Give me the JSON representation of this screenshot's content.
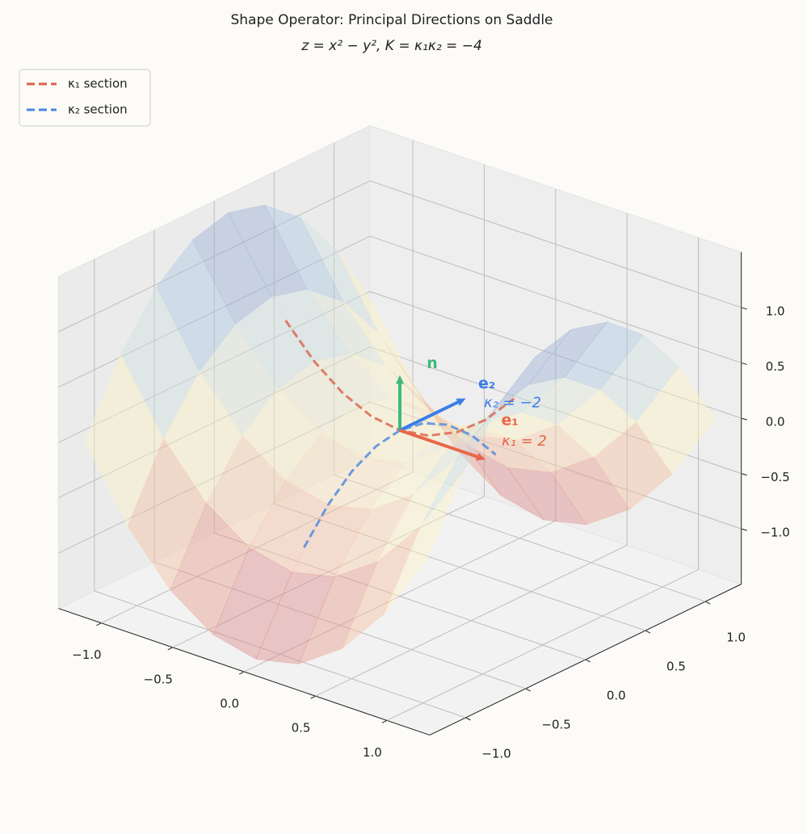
{
  "chart_data": {
    "type": "surface3d",
    "title": "Shape Operator: Principal Directions on Saddle",
    "subtitle": "z = x² − y², K = κ₁κ₂ = −4",
    "xlim": [
      -1.3,
      1.3
    ],
    "ylim": [
      -1.3,
      1.3
    ],
    "zlim": [
      -1.5,
      1.5
    ],
    "xticks": [
      {
        "value": -1,
        "label": "−1.0"
      },
      {
        "value": -0.5,
        "label": "−0.5"
      },
      {
        "value": 0,
        "label": "0.0"
      },
      0.5,
      {
        "value": 1,
        "label": "1.0"
      }
    ],
    "yticks": [
      {
        "value": -1,
        "label": "−1.0"
      },
      {
        "value": -0.5,
        "label": "−0.5"
      },
      {
        "value": 0,
        "label": "0.0"
      },
      0.5,
      {
        "value": 1,
        "label": "1.0"
      }
    ],
    "zticks": [
      {
        "value": -1,
        "label": "−1.0"
      },
      {
        "value": -0.5,
        "label": "−0.5"
      },
      {
        "value": 0,
        "label": "0.0"
      },
      0.5,
      {
        "value": 1,
        "label": "1.0"
      }
    ],
    "view": {
      "elev": 24,
      "azim": -50
    },
    "grid": true,
    "legend": "upper left",
    "surface": {
      "x": [
        -1.2,
        -0.9,
        -0.6,
        -0.3,
        0,
        0.3,
        0.6,
        0.9,
        1.2
      ],
      "y": [
        -1.2,
        -0.9,
        -0.6,
        -0.3,
        0,
        0.3,
        0.6,
        0.9,
        1.2
      ],
      "z": [
        [
          0,
          -0.63,
          -1.08,
          -1.35,
          -1.44,
          -1.35,
          -1.08,
          -0.63,
          0
        ],
        [
          0.63,
          0,
          -0.45,
          -0.72,
          -0.81,
          -0.72,
          -0.45,
          0,
          0.63
        ],
        [
          1.08,
          0.45,
          0,
          -0.27,
          -0.36,
          -0.27,
          0,
          0.45,
          1.08
        ],
        [
          1.35,
          0.72,
          0.27,
          0,
          -0.09,
          0,
          0.27,
          0.72,
          1.35
        ],
        [
          1.44,
          0.81,
          0.36,
          0.09,
          0,
          0.09,
          0.36,
          0.81,
          1.44
        ],
        [
          1.35,
          0.72,
          0.27,
          0,
          -0.09,
          0,
          0.27,
          0.72,
          1.35
        ],
        [
          1.08,
          0.45,
          0,
          -0.27,
          -0.36,
          -0.27,
          0,
          0.45,
          1.08
        ],
        [
          0.63,
          0,
          -0.45,
          -0.72,
          -0.81,
          -0.72,
          -0.45,
          0,
          0.63
        ],
        [
          0,
          -0.63,
          -1.08,
          -1.35,
          -1.44,
          -1.35,
          -1.08,
          -0.63,
          0
        ]
      ],
      "colormap": [
        "#c4587a",
        "#f2a98e",
        "#fff3c4",
        "#b9d8ea",
        "#7078b8"
      ],
      "alpha": 0.42
    },
    "series": [
      {
        "name": "κ₁ section",
        "color": "#d9604a",
        "x": [
          -0.8,
          -0.6,
          -0.4,
          -0.2,
          0,
          0.2,
          0.4,
          0.6,
          0.8
        ],
        "y": [
          0,
          0,
          0,
          0,
          0,
          0,
          0,
          0,
          0
        ],
        "values": [
          0.64,
          0.36,
          0.16,
          0.04,
          0,
          0.04,
          0.16,
          0.36,
          0.64
        ]
      },
      {
        "name": "κ₂ section",
        "color": "#4a86e0",
        "x": [
          0,
          0,
          0,
          0,
          0,
          0,
          0,
          0,
          0
        ],
        "y": [
          -0.8,
          -0.6,
          -0.4,
          -0.2,
          0,
          0.2,
          0.4,
          0.6,
          0.8
        ],
        "values": [
          -0.64,
          -0.36,
          -0.16,
          -0.04,
          0,
          -0.04,
          -0.16,
          -0.36,
          -0.64
        ]
      }
    ],
    "vectors": [
      {
        "name": "n",
        "color": "#3dbb7a",
        "dx": 0,
        "dy": 0,
        "dz": 0.5
      },
      {
        "name": "e₂",
        "label": "κ₂ = −2",
        "color": "#3b7de8",
        "dx": 0,
        "dy": 0.55,
        "dz": 0
      },
      {
        "name": "e₁",
        "label": "κ₁ = 2",
        "color": "#e8664a",
        "dx": 0.6,
        "dy": 0,
        "dz": 0
      }
    ]
  }
}
